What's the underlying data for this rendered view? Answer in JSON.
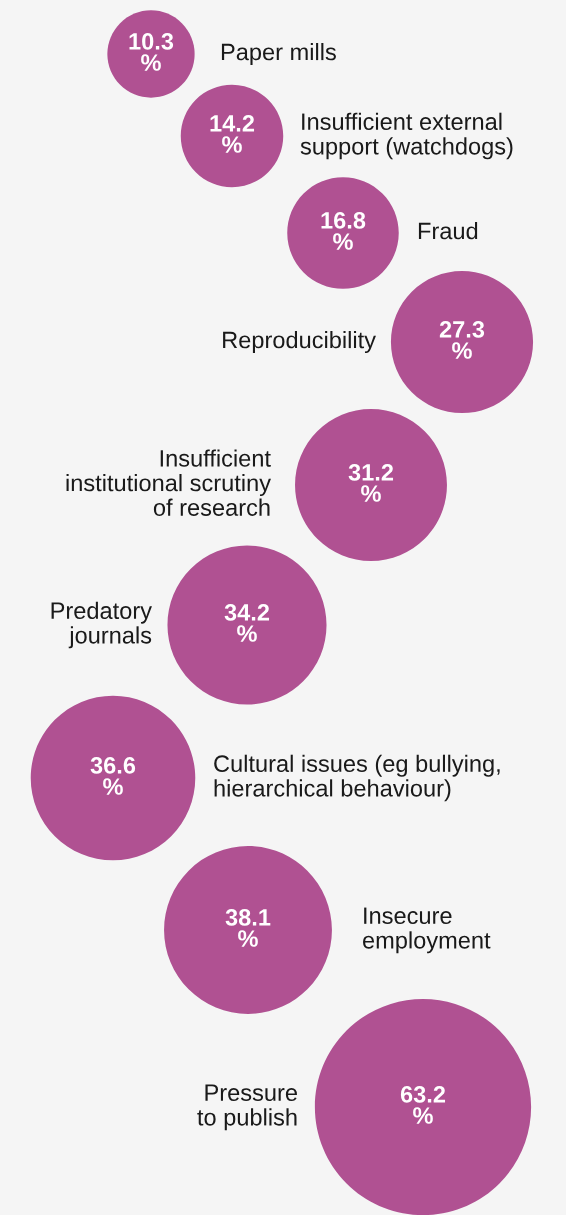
{
  "chart_data": {
    "type": "other",
    "categories": [
      "Paper mills",
      "Insufficient external\nsupport (watchdogs)",
      "Fraud",
      "Reproducibility",
      "Insufficient\ninstitutional scrutiny\nof research",
      "Predatory\njournals",
      "Cultural issues (eg bullying,\nhierarchical behaviour)",
      "Insecure\nemployment",
      "Pressure\nto publish"
    ],
    "values": [
      10.3,
      14.2,
      16.8,
      27.3,
      31.2,
      34.2,
      36.6,
      38.1,
      63.2
    ],
    "value_labels": [
      "10.3\n%",
      "14.2\n%",
      "16.8\n%",
      "27.3\n%",
      "31.2\n%",
      "34.2\n%",
      "36.6\n%",
      "38.1\n%",
      "63.2\n%"
    ],
    "color": "#b05192"
  }
}
